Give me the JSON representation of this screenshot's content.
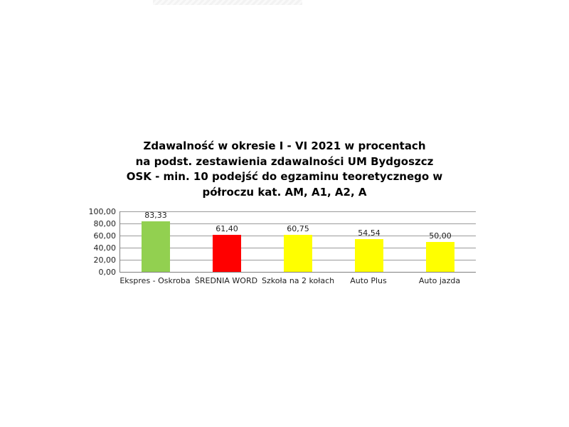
{
  "title": {
    "lines": [
      "Zdawalność w okresie I - VI 2021 w procentach",
      "na podst. zestawienia zdawalności UM Bydgoszcz",
      "OSK - min. 10 podejść do egzaminu teoretycznego w",
      "półroczu kat. AM, A1, A2, A"
    ]
  },
  "chart_data": {
    "type": "bar",
    "title": "Zdawalność w okresie I - VI 2021 w procentach na podst. zestawienia zdawalności UM Bydgoszcz OSK - min. 10 podejść do egzaminu teoretycznego w półroczu kat. AM, A1, A2, A",
    "categories": [
      "Ekspres - Oskroba",
      "ŚREDNIA WORD",
      "Szkoła na 2 kołach",
      "Auto Plus",
      "Auto jazda"
    ],
    "values": [
      83.33,
      61.4,
      60.75,
      54.54,
      50.0
    ],
    "value_labels": [
      "83,33",
      "61,40",
      "60,75",
      "54,54",
      "50,00"
    ],
    "bar_colors": [
      "#92d050",
      "#ff0000",
      "#ffff00",
      "#ffff00",
      "#ffff00"
    ],
    "xlabel": "",
    "ylabel": "",
    "ylim": [
      0,
      100
    ],
    "yticks": [
      0,
      20,
      40,
      60,
      80,
      100
    ],
    "ytick_labels": [
      "0,00",
      "20,00",
      "40,00",
      "60,00",
      "80,00",
      "100,00"
    ],
    "grid": true,
    "legend": false
  },
  "style_colors": {
    "grid": "#9b9b9b",
    "axis": "#808080",
    "chart_text": "#1f1f1f",
    "title_text": "#000000",
    "background": "#ffffff"
  }
}
